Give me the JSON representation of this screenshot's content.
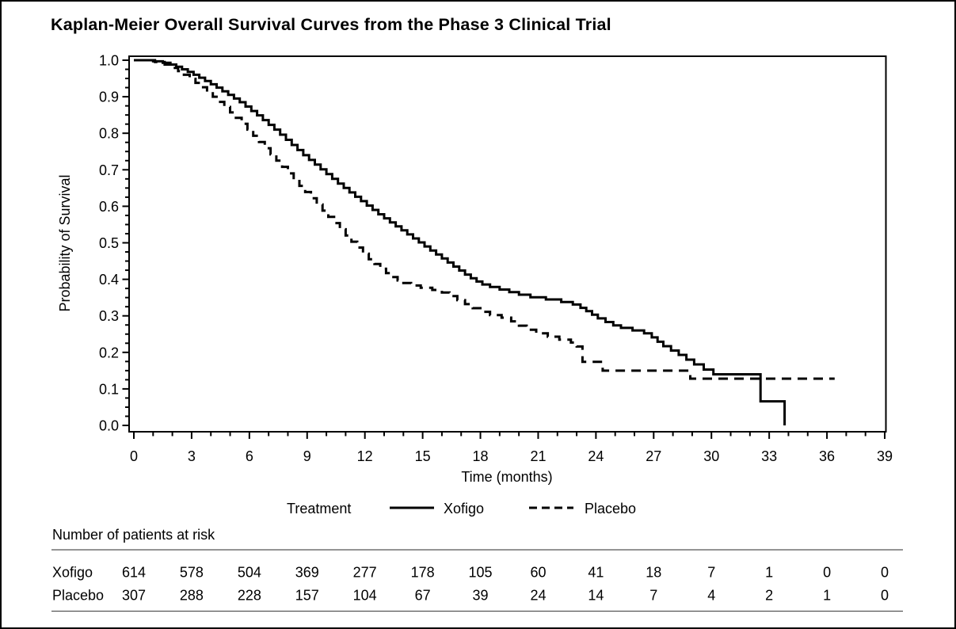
{
  "title": "Kaplan-Meier Overall Survival Curves from the Phase 3 Clinical Trial",
  "axes": {
    "x": {
      "label": "Time (months)",
      "min": 0,
      "max": 39,
      "major_step": 3,
      "minor_step": 1
    },
    "y": {
      "label": "Probability of Survival",
      "min": 0.0,
      "max": 1.0,
      "major_step": 0.1,
      "minor_step": 0.025,
      "decimals": 1
    }
  },
  "legend": {
    "title": "Treatment",
    "items": [
      {
        "label": "Xofigo",
        "style": "solid"
      },
      {
        "label": "Placebo",
        "style": "dashed"
      }
    ]
  },
  "at_risk": {
    "header": "Number of patients at risk",
    "times": [
      0,
      3,
      6,
      9,
      12,
      15,
      18,
      21,
      24,
      27,
      30,
      33,
      36,
      39
    ],
    "rows": [
      {
        "label": "Xofigo",
        "counts": [
          614,
          578,
          504,
          369,
          277,
          178,
          105,
          60,
          41,
          18,
          7,
          1,
          0,
          0
        ]
      },
      {
        "label": "Placebo",
        "counts": [
          307,
          288,
          228,
          157,
          104,
          67,
          39,
          24,
          14,
          7,
          4,
          2,
          1,
          0
        ]
      }
    ]
  },
  "chart_data": {
    "type": "line",
    "subtype": "kaplan-meier-step",
    "title": "Kaplan-Meier Overall Survival Curves from the Phase 3 Clinical Trial",
    "xlabel": "Time (months)",
    "ylabel": "Probability of Survival",
    "xlim": [
      0,
      39
    ],
    "ylim": [
      0.0,
      1.0
    ],
    "grid": false,
    "legend_position": "bottom",
    "colors": {
      "foreground": "#000000",
      "background": "#ffffff"
    },
    "series": [
      {
        "name": "Xofigo",
        "line_style": "solid",
        "ends_at_zero": true,
        "points": [
          [
            0,
            1.0
          ],
          [
            1.0,
            0.997
          ],
          [
            1.5,
            0.993
          ],
          [
            1.9,
            0.988
          ],
          [
            2.2,
            0.982
          ],
          [
            2.5,
            0.975
          ],
          [
            2.8,
            0.968
          ],
          [
            3.1,
            0.96
          ],
          [
            3.4,
            0.952
          ],
          [
            3.7,
            0.943
          ],
          [
            4.0,
            0.934
          ],
          [
            4.3,
            0.925
          ],
          [
            4.6,
            0.915
          ],
          [
            4.9,
            0.905
          ],
          [
            5.2,
            0.895
          ],
          [
            5.5,
            0.885
          ],
          [
            5.8,
            0.873
          ],
          [
            6.1,
            0.861
          ],
          [
            6.4,
            0.849
          ],
          [
            6.7,
            0.836
          ],
          [
            7.0,
            0.823
          ],
          [
            7.3,
            0.81
          ],
          [
            7.6,
            0.796
          ],
          [
            7.9,
            0.782
          ],
          [
            8.2,
            0.768
          ],
          [
            8.5,
            0.754
          ],
          [
            8.8,
            0.74
          ],
          [
            9.1,
            0.727
          ],
          [
            9.4,
            0.714
          ],
          [
            9.7,
            0.701
          ],
          [
            10.0,
            0.688
          ],
          [
            10.3,
            0.675
          ],
          [
            10.6,
            0.662
          ],
          [
            10.9,
            0.65
          ],
          [
            11.2,
            0.638
          ],
          [
            11.5,
            0.626
          ],
          [
            11.8,
            0.614
          ],
          [
            12.1,
            0.602
          ],
          [
            12.4,
            0.59
          ],
          [
            12.7,
            0.578
          ],
          [
            13.0,
            0.567
          ],
          [
            13.3,
            0.556
          ],
          [
            13.6,
            0.545
          ],
          [
            13.9,
            0.534
          ],
          [
            14.2,
            0.523
          ],
          [
            14.5,
            0.512
          ],
          [
            14.8,
            0.501
          ],
          [
            15.1,
            0.49
          ],
          [
            15.4,
            0.479
          ],
          [
            15.7,
            0.468
          ],
          [
            16.0,
            0.457
          ],
          [
            16.3,
            0.446
          ],
          [
            16.6,
            0.435
          ],
          [
            16.9,
            0.424
          ],
          [
            17.2,
            0.413
          ],
          [
            17.5,
            0.403
          ],
          [
            17.8,
            0.394
          ],
          [
            18.1,
            0.386
          ],
          [
            18.5,
            0.379
          ],
          [
            19.0,
            0.372
          ],
          [
            19.5,
            0.365
          ],
          [
            20.0,
            0.358
          ],
          [
            20.6,
            0.351
          ],
          [
            21.4,
            0.345
          ],
          [
            22.2,
            0.338
          ],
          [
            22.8,
            0.331
          ],
          [
            23.2,
            0.322
          ],
          [
            23.5,
            0.313
          ],
          [
            23.8,
            0.303
          ],
          [
            24.1,
            0.293
          ],
          [
            24.5,
            0.283
          ],
          [
            24.9,
            0.274
          ],
          [
            25.3,
            0.267
          ],
          [
            25.9,
            0.26
          ],
          [
            26.5,
            0.252
          ],
          [
            26.9,
            0.241
          ],
          [
            27.2,
            0.229
          ],
          [
            27.5,
            0.217
          ],
          [
            27.9,
            0.205
          ],
          [
            28.3,
            0.193
          ],
          [
            28.7,
            0.18
          ],
          [
            29.1,
            0.167
          ],
          [
            29.6,
            0.153
          ],
          [
            30.1,
            0.14
          ],
          [
            32.55,
            0.066
          ],
          [
            33.8,
            0.0
          ]
        ]
      },
      {
        "name": "Placebo",
        "line_style": "dashed",
        "ends_at_zero": false,
        "points": [
          [
            0,
            1.0
          ],
          [
            1.1,
            0.995
          ],
          [
            1.6,
            0.988
          ],
          [
            2.0,
            0.979
          ],
          [
            2.3,
            0.97
          ],
          [
            2.6,
            0.96
          ],
          [
            2.9,
            0.949
          ],
          [
            3.2,
            0.938
          ],
          [
            3.5,
            0.926
          ],
          [
            3.8,
            0.913
          ],
          [
            4.1,
            0.9
          ],
          [
            4.4,
            0.886
          ],
          [
            4.7,
            0.872
          ],
          [
            5.0,
            0.857
          ],
          [
            5.3,
            0.842
          ],
          [
            5.6,
            0.826
          ],
          [
            5.9,
            0.81
          ],
          [
            6.2,
            0.793
          ],
          [
            6.5,
            0.776
          ],
          [
            6.8,
            0.759
          ],
          [
            7.1,
            0.742
          ],
          [
            7.4,
            0.725
          ],
          [
            7.7,
            0.708
          ],
          [
            8.0,
            0.69
          ],
          [
            8.3,
            0.673
          ],
          [
            8.6,
            0.656
          ],
          [
            8.9,
            0.639
          ],
          [
            9.2,
            0.622
          ],
          [
            9.5,
            0.605
          ],
          [
            9.8,
            0.588
          ],
          [
            10.1,
            0.571
          ],
          [
            10.4,
            0.554
          ],
          [
            10.7,
            0.537
          ],
          [
            11.0,
            0.52
          ],
          [
            11.3,
            0.503
          ],
          [
            11.6,
            0.487
          ],
          [
            11.9,
            0.47
          ],
          [
            12.2,
            0.455
          ],
          [
            12.5,
            0.442
          ],
          [
            12.8,
            0.429
          ],
          [
            13.1,
            0.417
          ],
          [
            13.4,
            0.406
          ],
          [
            13.7,
            0.397
          ],
          [
            14.0,
            0.39
          ],
          [
            14.4,
            0.383
          ],
          [
            14.9,
            0.377
          ],
          [
            15.5,
            0.371
          ],
          [
            16.0,
            0.364
          ],
          [
            16.4,
            0.354
          ],
          [
            16.8,
            0.343
          ],
          [
            17.2,
            0.332
          ],
          [
            17.6,
            0.321
          ],
          [
            18.0,
            0.311
          ],
          [
            18.5,
            0.302
          ],
          [
            19.1,
            0.295
          ],
          [
            19.6,
            0.285
          ],
          [
            20.0,
            0.273
          ],
          [
            20.4,
            0.262
          ],
          [
            20.9,
            0.252
          ],
          [
            21.5,
            0.243
          ],
          [
            22.1,
            0.235
          ],
          [
            22.7,
            0.227
          ],
          [
            23.0,
            0.216
          ],
          [
            23.3,
            0.174
          ],
          [
            24.35,
            0.15
          ],
          [
            28.9,
            0.128
          ],
          [
            36.4,
            0.128
          ]
        ]
      }
    ]
  }
}
